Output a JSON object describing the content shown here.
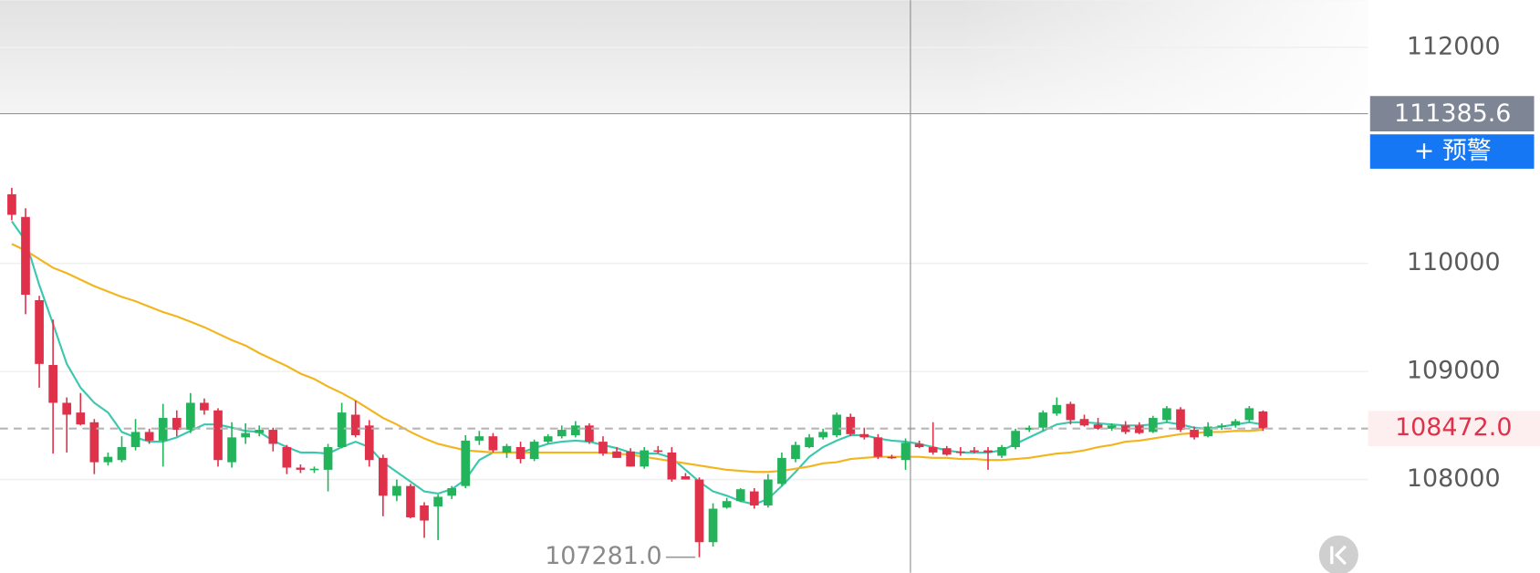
{
  "chart_data": {
    "type": "candlestick",
    "ylim": [
      107136.4,
      112436.4
    ],
    "yticks": [
      108000,
      109000,
      110000,
      112000
    ],
    "grid": true,
    "up_color": "#22b35b",
    "down_color": "#e0314b",
    "open": [
      110640,
      110430,
      109660,
      109060,
      108710,
      108620,
      108530,
      108160,
      108180,
      108300,
      108440,
      108360,
      108570,
      108460,
      108710,
      108640,
      108160,
      108390,
      108430,
      108460,
      108300,
      108110,
      108090,
      108090,
      108300,
      108600,
      108500,
      108200,
      107850,
      107940,
      107760,
      107750,
      107850,
      107940,
      108360,
      108400,
      108250,
      108300,
      108190,
      108350,
      108400,
      108410,
      108500,
      108350,
      108260,
      108260,
      108120,
      108270,
      108250,
      108030,
      108000,
      107420,
      107740,
      107800,
      107890,
      107760,
      107960,
      108190,
      108300,
      108390,
      108410,
      108580,
      108420,
      108390,
      108210,
      108180,
      108330,
      108300,
      108290,
      108260,
      108270,
      108270,
      108220,
      108300,
      108460,
      108480,
      108610,
      108700,
      108560,
      108510,
      108470,
      108500,
      108500,
      108440,
      108550,
      108650,
      108460,
      108400,
      108490,
      108500,
      108550,
      108630
    ],
    "high": [
      110700,
      110510,
      109700,
      109480,
      108760,
      108800,
      108560,
      108250,
      108400,
      108560,
      108470,
      108700,
      108640,
      108800,
      108750,
      108660,
      108530,
      108520,
      108500,
      108480,
      108320,
      108140,
      108120,
      108330,
      108710,
      108730,
      108550,
      108230,
      108000,
      107960,
      107790,
      107860,
      107940,
      108410,
      108450,
      108430,
      108330,
      108350,
      108370,
      108420,
      108500,
      108540,
      108520,
      108400,
      108300,
      108290,
      108300,
      108310,
      108300,
      108060,
      108020,
      107780,
      107830,
      107920,
      107920,
      108050,
      108250,
      108350,
      108420,
      108470,
      108620,
      108610,
      108480,
      108420,
      108230,
      108380,
      108360,
      108530,
      108310,
      108300,
      108300,
      108300,
      108320,
      108470,
      108500,
      108640,
      108760,
      108720,
      108600,
      108570,
      108520,
      108540,
      108530,
      108590,
      108680,
      108670,
      108490,
      108530,
      108520,
      108560,
      108680,
      108640
    ],
    "low": [
      110400,
      109530,
      108850,
      108240,
      108250,
      108500,
      108050,
      108130,
      108160,
      108270,
      108330,
      108120,
      108400,
      108430,
      108600,
      108120,
      108110,
      108330,
      108400,
      108260,
      108050,
      108060,
      108060,
      107890,
      108290,
      108390,
      108120,
      107660,
      107800,
      107640,
      107460,
      107440,
      107820,
      107920,
      108320,
      108250,
      108200,
      108150,
      108170,
      108330,
      108380,
      108390,
      108330,
      108220,
      108200,
      108120,
      108100,
      108240,
      107980,
      108000,
      107281,
      107380,
      107730,
      107790,
      107730,
      107740,
      107940,
      108160,
      108290,
      108370,
      108390,
      108400,
      108370,
      108190,
      108190,
      108090,
      108290,
      108230,
      108220,
      108220,
      108240,
      108090,
      108200,
      108280,
      108440,
      108450,
      108590,
      108510,
      108490,
      108460,
      108450,
      108420,
      108420,
      108430,
      108530,
      108440,
      108370,
      108390,
      108460,
      108480,
      108530,
      108450
    ],
    "close": [
      110450,
      109710,
      109070,
      108710,
      108600,
      108510,
      108160,
      108210,
      108300,
      108440,
      108360,
      108570,
      108460,
      108710,
      108640,
      108180,
      108390,
      108430,
      108460,
      108330,
      108110,
      108090,
      108100,
      108300,
      108620,
      108410,
      108180,
      107850,
      107940,
      107650,
      107620,
      107840,
      107920,
      108360,
      108400,
      108270,
      108310,
      108190,
      108350,
      108400,
      108460,
      108500,
      108350,
      108240,
      108200,
      108120,
      108270,
      108260,
      108000,
      108000,
      107420,
      107730,
      107800,
      107910,
      107760,
      108000,
      108200,
      108320,
      108390,
      108440,
      108600,
      108420,
      108390,
      108210,
      108200,
      108340,
      108300,
      108250,
      108230,
      108250,
      108260,
      108250,
      108300,
      108450,
      108480,
      108620,
      108690,
      108550,
      108500,
      108470,
      108500,
      108440,
      108430,
      108570,
      108660,
      108460,
      108390,
      108490,
      108500,
      108540,
      108660,
      108472
    ],
    "ma_lines": [
      {
        "color": "#3cc8ae",
        "values": [
          110390,
          110210,
          109800,
          109440,
          109070,
          108850,
          108710,
          108620,
          108440,
          108390,
          108350,
          108350,
          108390,
          108450,
          108510,
          108510,
          108480,
          108450,
          108440,
          108360,
          108300,
          108250,
          108250,
          108240,
          108300,
          108350,
          108300,
          108160,
          108070,
          107980,
          107890,
          107870,
          107910,
          108000,
          108180,
          108250,
          108250,
          108250,
          108290,
          108330,
          108350,
          108360,
          108350,
          108320,
          108290,
          108250,
          108240,
          108240,
          108200,
          108090,
          107980,
          107890,
          107850,
          107800,
          107770,
          107820,
          107940,
          108070,
          108210,
          108300,
          108360,
          108410,
          108410,
          108380,
          108360,
          108350,
          108330,
          108300,
          108270,
          108250,
          108250,
          108250,
          108270,
          108330,
          108390,
          108450,
          108510,
          108530,
          108530,
          108520,
          108510,
          108500,
          108500,
          108510,
          108530,
          108510,
          108480,
          108470,
          108490,
          108510,
          108530,
          108510
        ]
      },
      {
        "color": "#f2b51e",
        "values": [
          110180,
          110120,
          110040,
          109960,
          109910,
          109850,
          109790,
          109740,
          109690,
          109650,
          109600,
          109550,
          109510,
          109460,
          109410,
          109350,
          109290,
          109240,
          109170,
          109110,
          109050,
          108980,
          108930,
          108860,
          108800,
          108730,
          108650,
          108570,
          108510,
          108440,
          108380,
          108330,
          108300,
          108270,
          108260,
          108250,
          108250,
          108250,
          108250,
          108250,
          108250,
          108250,
          108250,
          108250,
          108240,
          108230,
          108210,
          108190,
          108170,
          108150,
          108130,
          108110,
          108090,
          108080,
          108070,
          108070,
          108080,
          108100,
          108120,
          108150,
          108160,
          108190,
          108200,
          108210,
          108210,
          108210,
          108210,
          108200,
          108200,
          108190,
          108190,
          108180,
          108180,
          108190,
          108200,
          108220,
          108240,
          108250,
          108270,
          108300,
          108320,
          108350,
          108360,
          108380,
          108400,
          108420,
          108430,
          108440,
          108440,
          108450,
          108450,
          108460
        ]
      }
    ],
    "crosshair": 111385.6,
    "last_price": {
      "value": 108472,
      "label": "108472.0"
    },
    "min_label": {
      "value": 107281,
      "label": "107281.0"
    },
    "alert_button": "+ 预警"
  }
}
